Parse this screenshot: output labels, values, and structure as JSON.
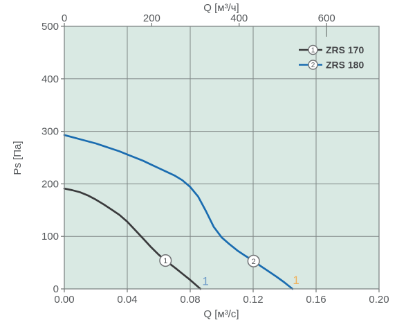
{
  "style": {
    "plot_bg": "#d9e9e3",
    "grid_color": "#7e8685",
    "border_color": "#7e8685",
    "tick_color": "#6d7372",
    "tick_label_color": "#54575a",
    "axis_title_color": "#54575a",
    "legend_label_color": "#454649",
    "marker_fill": "#ffffff",
    "marker_stroke": "#707275",
    "marker_num_color": "#55575a"
  },
  "chart_data": {
    "type": "line",
    "title": "",
    "x_bottom_axis": {
      "label": "Q [м³/с]",
      "min": 0,
      "max": 0.2,
      "ticks": [
        {
          "value": 0.0,
          "label": "0.00"
        },
        {
          "value": 0.04,
          "label": "0.04"
        },
        {
          "value": 0.08,
          "label": "0.08"
        },
        {
          "value": 0.12,
          "label": "0.12"
        },
        {
          "value": 0.16,
          "label": "0.16"
        },
        {
          "value": 0.2,
          "label": "0.20"
        }
      ]
    },
    "x_top_axis": {
      "label": "Q [м³/ч]",
      "min": 0,
      "max": 720,
      "ticks": [
        {
          "value": 0,
          "label": "0"
        },
        {
          "value": 200,
          "label": "200"
        },
        {
          "value": 400,
          "label": "400"
        },
        {
          "value": 600,
          "label": "600",
          "inward_tick": true
        }
      ]
    },
    "y_axis": {
      "label": "Ps [Па]",
      "min": 0,
      "max": 500,
      "ticks": [
        {
          "value": 0,
          "label": "0"
        },
        {
          "value": 100,
          "label": "100"
        },
        {
          "value": 200,
          "label": "200"
        },
        {
          "value": 300,
          "label": "300"
        },
        {
          "value": 400,
          "label": "400"
        },
        {
          "value": 500,
          "label": "500"
        }
      ]
    },
    "grid": {
      "x_values": [
        0.04,
        0.08,
        0.12,
        0.16
      ],
      "y_values": [
        100,
        200,
        300,
        400
      ]
    },
    "legend_position": "top-right",
    "series": [
      {
        "name": "ZRS 170",
        "marker_label": "1",
        "color": "#3a3a3c",
        "marker": {
          "q": 0.0643,
          "ps": 54
        },
        "points": [
          [
            0,
            191
          ],
          [
            0.005,
            188
          ],
          [
            0.01,
            184
          ],
          [
            0.015,
            178
          ],
          [
            0.02,
            170
          ],
          [
            0.025,
            161
          ],
          [
            0.03,
            151
          ],
          [
            0.035,
            141
          ],
          [
            0.04,
            128
          ],
          [
            0.045,
            112
          ],
          [
            0.05,
            96
          ],
          [
            0.055,
            80
          ],
          [
            0.06,
            65
          ],
          [
            0.0643,
            54
          ],
          [
            0.07,
            41
          ],
          [
            0.075,
            29
          ],
          [
            0.08,
            17
          ],
          [
            0.0865,
            0
          ]
        ]
      },
      {
        "name": "ZRS 180",
        "marker_label": "2",
        "color": "#1a6cb0",
        "marker": {
          "q": 0.1203,
          "ps": 53
        },
        "points": [
          [
            0,
            293
          ],
          [
            0.005,
            289
          ],
          [
            0.01,
            285
          ],
          [
            0.015,
            281
          ],
          [
            0.02,
            277
          ],
          [
            0.025,
            272
          ],
          [
            0.03,
            267
          ],
          [
            0.035,
            262
          ],
          [
            0.04,
            256
          ],
          [
            0.045,
            250
          ],
          [
            0.05,
            244
          ],
          [
            0.055,
            237
          ],
          [
            0.06,
            230
          ],
          [
            0.065,
            223
          ],
          [
            0.07,
            216
          ],
          [
            0.075,
            207
          ],
          [
            0.08,
            194
          ],
          [
            0.085,
            176
          ],
          [
            0.09,
            148
          ],
          [
            0.095,
            118
          ],
          [
            0.1,
            98
          ],
          [
            0.105,
            85
          ],
          [
            0.11,
            73
          ],
          [
            0.115,
            63
          ],
          [
            0.1203,
            53
          ],
          [
            0.125,
            43
          ],
          [
            0.13,
            33
          ],
          [
            0.135,
            23
          ],
          [
            0.14,
            12
          ],
          [
            0.145,
            0
          ]
        ]
      }
    ],
    "annotations": [
      {
        "text": "1",
        "q": 0.0897,
        "ps": 7,
        "color": "#6f9cc8"
      },
      {
        "text": "1",
        "q": 0.1473,
        "ps": 9,
        "color": "#efb25d"
      }
    ]
  }
}
